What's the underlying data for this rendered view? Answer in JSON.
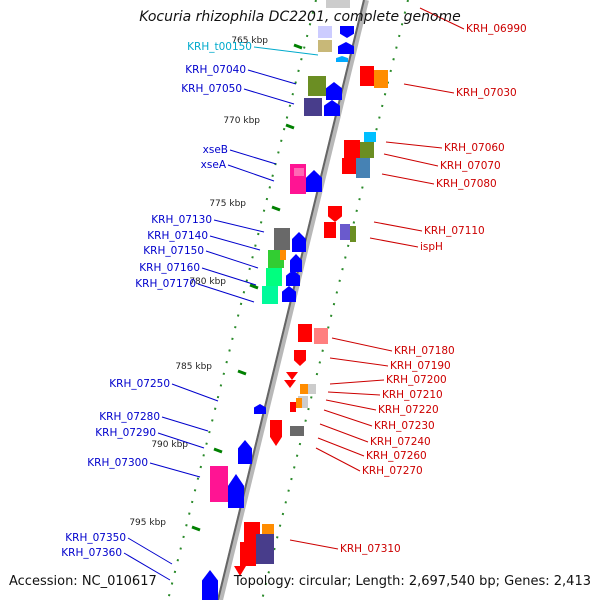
{
  "title": "Kocuria rhizophila DC2201, complete genome",
  "footer": {
    "accession": "Accession: NC_010617",
    "summary": "Topology: circular; Length: 2,697,540 bp; Genes: 2,413"
  },
  "colors": {
    "left_label": "#0000cc",
    "right_label": "#cc0000",
    "rna_label": "#00aacc",
    "axis": "#777777",
    "tick": "#008000"
  },
  "kbp_ticks": [
    "765 kbp",
    "770 kbp",
    "775 kbp",
    "780 kbp",
    "785 kbp",
    "790 kbp",
    "795 kbp"
  ],
  "left_genes": [
    "KRH_t00150",
    "KRH_07040",
    "KRH_07050",
    "xseB",
    "xseA",
    "KRH_07130",
    "KRH_07140",
    "KRH_07150",
    "KRH_07160",
    "KRH_07170",
    "KRH_07250",
    "KRH_07280",
    "KRH_07290",
    "KRH_07300",
    "KRH_07350",
    "KRH_07360"
  ],
  "right_genes": [
    "KRH_06990",
    "KRH_07030",
    "KRH_07060",
    "KRH_07070",
    "KRH_07080",
    "KRH_07110",
    "ispH",
    "KRH_07180",
    "KRH_07190",
    "KRH_07200",
    "KRH_07210",
    "KRH_07220",
    "KRH_07230",
    "KRH_07240",
    "KRH_07260",
    "KRH_07270",
    "KRH_07310"
  ]
}
